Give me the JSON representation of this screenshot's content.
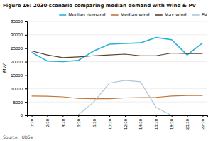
{
  "chart_data": {
    "type": "line",
    "title": "Figure 16: 2030 scenario comparing median demand with Wind & PV",
    "annotations": [
      "Source:  UBSe"
    ],
    "y_label": "MW",
    "categories": [
      "0:30",
      "2:30",
      "4:30",
      "6:30",
      "8:30",
      "10:30",
      "12:30",
      "14:30",
      "16:30",
      "18:30",
      "20:30",
      "22:30"
    ],
    "series": [
      {
        "name": "Median demand",
        "color": "#29b0d9",
        "values": [
          23500,
          20200,
          20000,
          20500,
          24000,
          26500,
          26800,
          27000,
          29000,
          28200,
          22500,
          27000
        ]
      },
      {
        "name": "Median wind",
        "color": "#c0773a",
        "values": [
          7200,
          7100,
          6900,
          6300,
          6200,
          6200,
          6500,
          6600,
          6700,
          7200,
          7400,
          7400
        ]
      },
      {
        "name": "Max wind",
        "color": "#5a4030",
        "values": [
          24000,
          22500,
          21500,
          21800,
          22200,
          22500,
          22800,
          22200,
          22200,
          23200,
          23000,
          23000
        ]
      },
      {
        "name": "PV",
        "color": "#aec6d8",
        "values": [
          0,
          0,
          0,
          200,
          5000,
          12000,
          13000,
          12500,
          3000,
          0,
          0,
          0
        ]
      }
    ],
    "ylim": [
      0,
      35000
    ],
    "yticks": [
      0,
      5000,
      10000,
      15000,
      20000,
      25000,
      30000,
      35000
    ],
    "grid": true,
    "legend": "upper right"
  }
}
